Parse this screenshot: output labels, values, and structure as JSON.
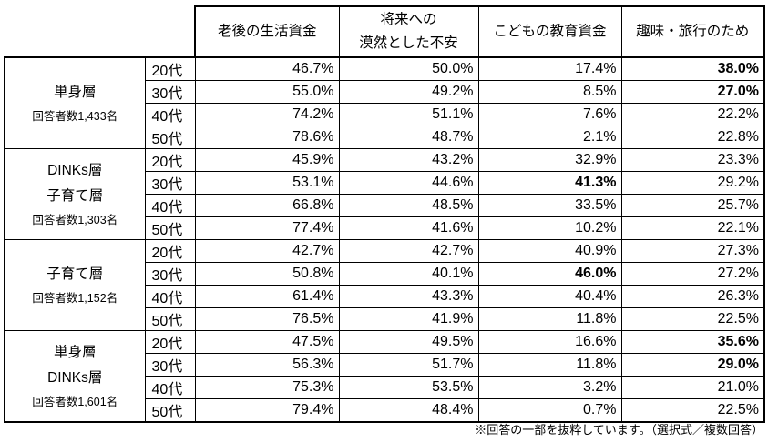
{
  "page": {
    "background": "#ffffff",
    "border_color": "#000000",
    "text_color": "#000000"
  },
  "table": {
    "columns": [
      {
        "lines": [
          "老後の生活資金"
        ]
      },
      {
        "lines": [
          "将来への",
          "漠然とした不安"
        ]
      },
      {
        "lines": [
          "こどもの教育資金"
        ]
      },
      {
        "lines": [
          "趣味・旅行のため"
        ]
      }
    ],
    "groups": [
      {
        "label_lines": [
          "単身層"
        ],
        "respondents": "回答者数1,433名",
        "rows": [
          {
            "age": "20代",
            "values": [
              "46.7%",
              "50.0%",
              "17.4%",
              "38.0%"
            ],
            "bold": [
              3
            ]
          },
          {
            "age": "30代",
            "values": [
              "55.0%",
              "49.2%",
              "8.5%",
              "27.0%"
            ],
            "bold": [
              3
            ]
          },
          {
            "age": "40代",
            "values": [
              "74.2%",
              "51.1%",
              "7.6%",
              "22.2%"
            ],
            "bold": []
          },
          {
            "age": "50代",
            "values": [
              "78.6%",
              "48.7%",
              "2.1%",
              "22.8%"
            ],
            "bold": []
          }
        ]
      },
      {
        "label_lines": [
          "DINKs層",
          "子育て層"
        ],
        "respondents": "回答者数1,303名",
        "rows": [
          {
            "age": "20代",
            "values": [
              "45.9%",
              "43.2%",
              "32.9%",
              "23.3%"
            ],
            "bold": []
          },
          {
            "age": "30代",
            "values": [
              "53.1%",
              "44.6%",
              "41.3%",
              "29.2%"
            ],
            "bold": [
              2
            ]
          },
          {
            "age": "40代",
            "values": [
              "66.8%",
              "48.5%",
              "33.5%",
              "25.7%"
            ],
            "bold": []
          },
          {
            "age": "50代",
            "values": [
              "77.4%",
              "41.6%",
              "10.2%",
              "22.1%"
            ],
            "bold": []
          }
        ]
      },
      {
        "label_lines": [
          "子育て層"
        ],
        "respondents": "回答者数1,152名",
        "rows": [
          {
            "age": "20代",
            "values": [
              "42.7%",
              "42.7%",
              "40.9%",
              "27.3%"
            ],
            "bold": []
          },
          {
            "age": "30代",
            "values": [
              "50.8%",
              "40.1%",
              "46.0%",
              "27.2%"
            ],
            "bold": [
              2
            ]
          },
          {
            "age": "40代",
            "values": [
              "61.4%",
              "43.3%",
              "40.4%",
              "26.3%"
            ],
            "bold": []
          },
          {
            "age": "50代",
            "values": [
              "76.5%",
              "41.9%",
              "11.8%",
              "22.5%"
            ],
            "bold": []
          }
        ]
      },
      {
        "label_lines": [
          "単身層",
          "DINKs層"
        ],
        "respondents": "回答者数1,601名",
        "rows": [
          {
            "age": "20代",
            "values": [
              "47.5%",
              "49.5%",
              "16.6%",
              "35.6%"
            ],
            "bold": [
              3
            ]
          },
          {
            "age": "30代",
            "values": [
              "56.3%",
              "51.7%",
              "11.8%",
              "29.0%"
            ],
            "bold": [
              3
            ]
          },
          {
            "age": "40代",
            "values": [
              "75.3%",
              "53.5%",
              "3.2%",
              "21.0%"
            ],
            "bold": []
          },
          {
            "age": "50代",
            "values": [
              "79.4%",
              "48.4%",
              "0.7%",
              "22.5%"
            ],
            "bold": []
          }
        ]
      }
    ]
  },
  "footnote": "※回答の一部を抜粋しています。（選択式／複数回答）"
}
